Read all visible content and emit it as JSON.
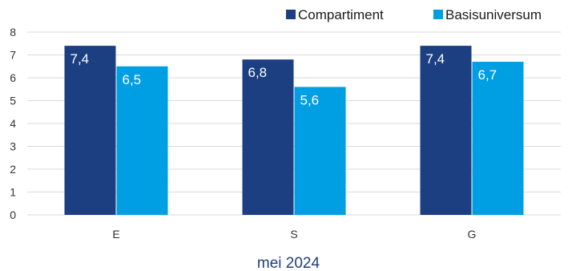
{
  "chart_data": {
    "type": "bar",
    "categories": [
      "E",
      "S",
      "G"
    ],
    "series": [
      {
        "name": "Compartiment",
        "values": [
          7.4,
          6.8,
          7.4
        ],
        "labels": [
          "7,4",
          "6,8",
          "7,4"
        ],
        "color": "#1b3f80"
      },
      {
        "name": "Basisuniversum",
        "values": [
          6.5,
          5.6,
          6.7
        ],
        "labels": [
          "6,5",
          "5,6",
          "6,7"
        ],
        "color": "#009fe3"
      }
    ],
    "xlabel": "mei 2024",
    "ylabel": "",
    "ylim": [
      0,
      8
    ],
    "yticks": [
      "0",
      "1",
      "2",
      "3",
      "4",
      "5",
      "6",
      "7",
      "8"
    ],
    "grid": true,
    "legend": "top-right",
    "gridColor": "#d9d9d9"
  }
}
